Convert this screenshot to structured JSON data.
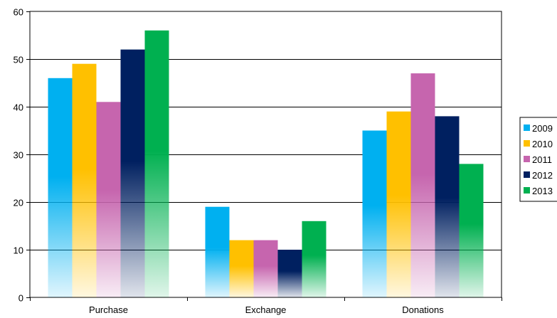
{
  "chart_data": {
    "type": "bar",
    "categories": [
      "Purchase",
      "Exchange",
      "Donations"
    ],
    "series": [
      {
        "name": "2009",
        "color": "#00b0f0",
        "values": [
          46,
          19,
          35
        ]
      },
      {
        "name": "2010",
        "color": "#ffc000",
        "values": [
          49,
          12,
          39
        ]
      },
      {
        "name": "2011",
        "color": "#c665ae",
        "values": [
          41,
          12,
          47
        ]
      },
      {
        "name": "2012",
        "color": "#002060",
        "values": [
          52,
          10,
          38
        ]
      },
      {
        "name": "2013",
        "color": "#00b050",
        "values": [
          56,
          16,
          28
        ]
      }
    ],
    "ylim": [
      0,
      60
    ],
    "yticks": [
      0,
      10,
      20,
      30,
      40,
      50,
      60
    ],
    "grid": true,
    "legend": "right",
    "title": "",
    "xlabel": "",
    "ylabel": ""
  }
}
